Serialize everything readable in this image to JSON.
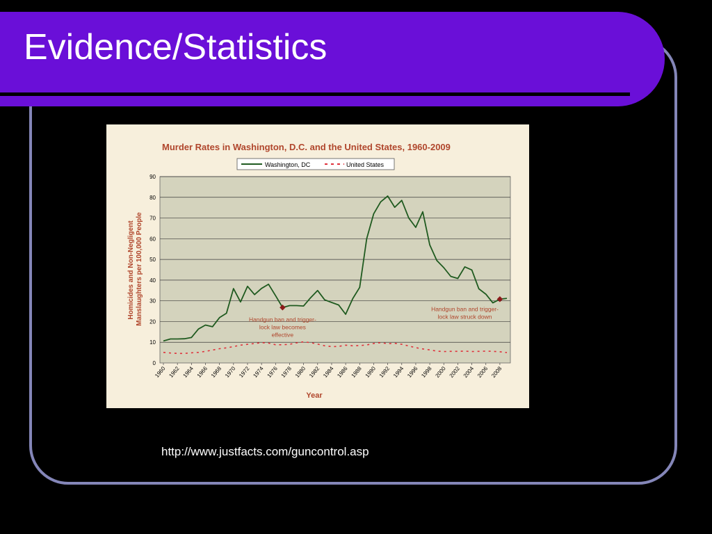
{
  "slide": {
    "title": "Evidence/Statistics",
    "source_url": "http://www.justfacts.com/guncontrol.asp"
  },
  "colors": {
    "title_band": "#6a0fd8",
    "frame": "#8486b8",
    "chart_bg": "#f7efdc",
    "plot_bg": "#d4d3bd",
    "chart_title": "#b0462c",
    "dc_line": "#1f5a1f",
    "us_line": "#e0303a",
    "marker": "#8b1a1a",
    "annotation": "#b0462c"
  },
  "chart_data": {
    "type": "line",
    "title": "Murder Rates in Washington, D.C. and the United States, 1960-2009",
    "xlabel": "Year",
    "ylabel": "Homicides and Non-Negligent Manslaughters per 100,000 People",
    "ylim": [
      0,
      90
    ],
    "yticks": [
      0,
      10,
      20,
      30,
      40,
      50,
      60,
      70,
      80,
      90
    ],
    "xlim": [
      1960,
      2009
    ],
    "xticks": [
      "1960",
      "1962",
      "1964",
      "1966",
      "1968",
      "1970",
      "1972",
      "1974",
      "1976",
      "1978",
      "1980",
      "1982",
      "1984",
      "1986",
      "1988",
      "1990",
      "1992",
      "1994",
      "1996",
      "1998",
      "2000",
      "2002",
      "2004",
      "2006",
      "2008"
    ],
    "grid": true,
    "legend_position": "top-center",
    "x": [
      1960,
      1961,
      1962,
      1963,
      1964,
      1965,
      1966,
      1967,
      1968,
      1969,
      1970,
      1971,
      1972,
      1973,
      1974,
      1975,
      1976,
      1977,
      1978,
      1979,
      1980,
      1981,
      1982,
      1983,
      1984,
      1985,
      1986,
      1987,
      1988,
      1989,
      1990,
      1991,
      1992,
      1993,
      1994,
      1995,
      1996,
      1997,
      1998,
      1999,
      2000,
      2001,
      2002,
      2003,
      2004,
      2005,
      2006,
      2007,
      2008,
      2009
    ],
    "series": [
      {
        "name": "Washington, DC",
        "style": "solid",
        "values": [
          10.6,
          11.6,
          11.6,
          11.7,
          12.3,
          16.4,
          18.3,
          17.5,
          21.9,
          24,
          35.9,
          29.5,
          37,
          33,
          36,
          38,
          32.5,
          26.8,
          27.7,
          27.7,
          27.5,
          31.5,
          35,
          30.5,
          29.2,
          28,
          23.5,
          31,
          36.5,
          60,
          72,
          77.8,
          80.6,
          75.2,
          78.5,
          70,
          65.5,
          73,
          57,
          49.5,
          46,
          41.8,
          40.8,
          46.4,
          44.9,
          35.8,
          33.2,
          29,
          30.8,
          31.2
        ]
      },
      {
        "name": "United States",
        "style": "dashed",
        "values": [
          5.1,
          4.8,
          4.6,
          4.6,
          4.9,
          5.1,
          5.6,
          6.2,
          6.9,
          7.3,
          7.9,
          8.6,
          9,
          9.4,
          9.8,
          9.6,
          8.8,
          8.8,
          9,
          9.7,
          10.2,
          9.8,
          9.1,
          8.3,
          7.9,
          8,
          8.6,
          8.3,
          8.4,
          8.7,
          9.4,
          9.8,
          9.3,
          9.5,
          9,
          8.2,
          7.4,
          6.8,
          6.3,
          5.7,
          5.5,
          5.6,
          5.6,
          5.7,
          5.5,
          5.6,
          5.7,
          5.6,
          5.4,
          5
        ]
      }
    ],
    "markers": [
      {
        "x": 1977,
        "y": 26.8
      },
      {
        "x": 2008,
        "y": 30.8
      }
    ],
    "annotations": [
      {
        "lines": [
          "Handgun ban and trigger-",
          "lock law becomes",
          "effective"
        ],
        "x": 1977,
        "y": 20
      },
      {
        "lines": [
          "Handgun ban and trigger-",
          "lock law struck down"
        ],
        "x": 2003,
        "y": 25
      }
    ]
  }
}
